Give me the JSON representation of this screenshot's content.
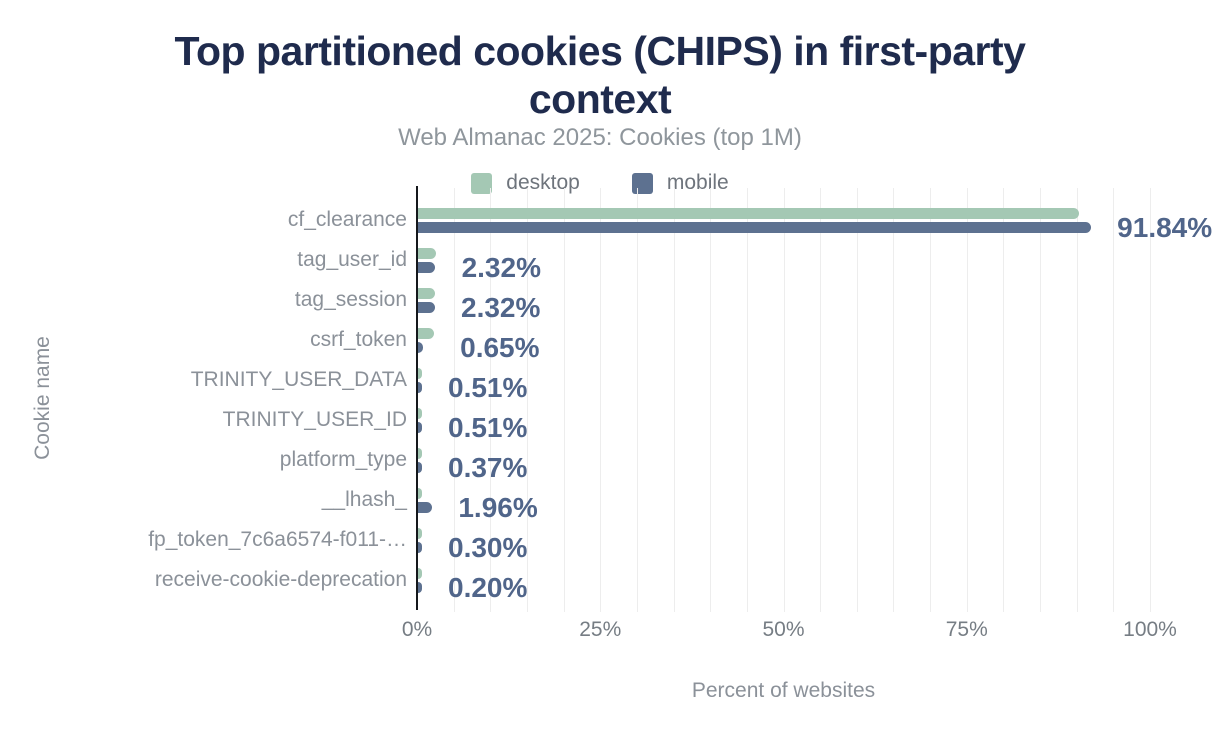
{
  "header": {
    "title": "Top partitioned cookies (CHIPS) in first-party\ncontext",
    "subtitle": "Web Almanac 2025: Cookies (top 1M)"
  },
  "legend": [
    {
      "id": "desktop",
      "label": "desktop",
      "color": "#a4c8b4"
    },
    {
      "id": "mobile",
      "label": "mobile",
      "color": "#5d7190"
    }
  ],
  "colors": {
    "title": "#1f2b4d",
    "subtitle": "#8f969c",
    "legend_text": "#6e747c",
    "category_label": "#8b9199",
    "value_label": "#50658a",
    "tick_label": "#767d84",
    "axis_title": "#8b9199",
    "axis_line": "#15181c",
    "gridline": "#ededed",
    "desktop_bar": "#a4c8b4",
    "mobile_bar": "#5d7190"
  },
  "chart_data": {
    "type": "bar",
    "orientation": "horizontal",
    "title": "Top partitioned cookies (CHIPS) in first-party context",
    "subtitle": "Web Almanac 2025: Cookies (top 1M)",
    "xlabel": "Percent of websites",
    "ylabel": "Cookie name",
    "xlim": [
      0,
      100
    ],
    "grid": "vertical minor gridlines every 5%, labeled every 25%",
    "legend_position": "top-center",
    "x_ticks": [
      {
        "pct": 0,
        "label": "0%"
      },
      {
        "pct": 25,
        "label": "25%"
      },
      {
        "pct": 50,
        "label": "50%"
      },
      {
        "pct": 75,
        "label": "75%"
      },
      {
        "pct": 100,
        "label": "100%"
      }
    ],
    "grid_step_pct": 5,
    "categories": [
      "cf_clearance",
      "tag_user_id",
      "tag_session",
      "csrf_token",
      "TRINITY_USER_DATA",
      "TRINITY_USER_ID",
      "platform_type",
      "__lhash_",
      "fp_token_7c6a6574-f011-…",
      "receive-cookie-deprecation"
    ],
    "series": [
      {
        "name": "desktop",
        "values": [
          90.2,
          2.4,
          2.3,
          2.2,
          0.5,
          0.5,
          0.4,
          0.4,
          0.3,
          0.25
        ]
      },
      {
        "name": "mobile",
        "values": [
          91.84,
          2.32,
          2.32,
          0.65,
          0.51,
          0.51,
          0.37,
          1.96,
          0.3,
          0.2
        ]
      }
    ],
    "value_labels": [
      "91.84%",
      "2.32%",
      "2.32%",
      "0.65%",
      "0.51%",
      "0.51%",
      "0.37%",
      "1.96%",
      "0.30%",
      "0.20%"
    ],
    "value_labels_series": "mobile"
  }
}
